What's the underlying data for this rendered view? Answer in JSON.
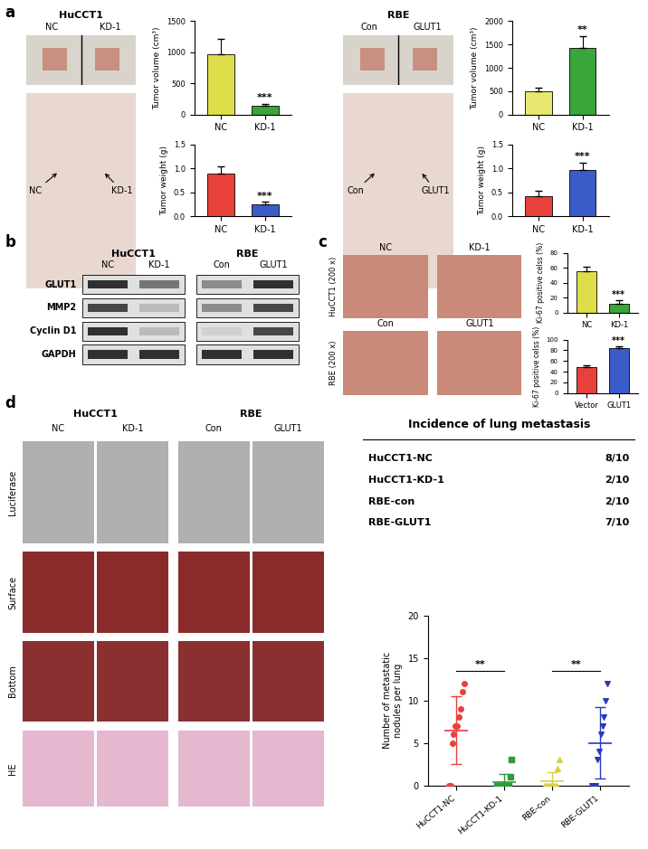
{
  "chart_data": [
    {
      "type": "bar",
      "panel": "a",
      "group": "HuCCT1",
      "categories": [
        "NC",
        "KD-1"
      ],
      "values": [
        970,
        140
      ],
      "errors": [
        250,
        30
      ],
      "colors": [
        "#dede4a",
        "#3aa53a"
      ],
      "y_label": "Tumor volume (cm³)",
      "ylim": [
        0,
        1500
      ],
      "yticks": [
        0,
        500,
        1000,
        1500
      ],
      "annotation": "***"
    },
    {
      "type": "bar",
      "panel": "a",
      "group": "HuCCT1",
      "categories": [
        "NC",
        "KD-1"
      ],
      "values": [
        0.9,
        0.25
      ],
      "errors": [
        0.15,
        0.05
      ],
      "colors": [
        "#e8403a",
        "#3a5bc8"
      ],
      "y_label": "Tumor weight (g)",
      "ylim": [
        0,
        1.5
      ],
      "yticks": [
        {
          "value": 0,
          "label": "0.0"
        },
        0.5,
        {
          "value": 1,
          "label": "1.0"
        },
        1.5
      ],
      "annotation": "***"
    },
    {
      "type": "bar",
      "panel": "a",
      "group": "RBE",
      "categories": [
        "NC",
        "KD-1"
      ],
      "values": [
        500,
        1430
      ],
      "errors": [
        70,
        250
      ],
      "colors": [
        "#e8e870",
        "#3aa53a"
      ],
      "y_label": "Tumor volume (cm³)",
      "ylim": [
        0,
        2000
      ],
      "yticks": [
        0,
        500,
        1000,
        1500,
        2000
      ],
      "annotation": "**"
    },
    {
      "type": "bar",
      "panel": "a",
      "group": "RBE",
      "categories": [
        "NC",
        "KD-1"
      ],
      "values": [
        0.42,
        0.97
      ],
      "errors": [
        0.12,
        0.15
      ],
      "colors": [
        "#e8403a",
        "#3a5bc8"
      ],
      "y_label": "Tumor weight (g)",
      "ylim": [
        0,
        1.5
      ],
      "yticks": [
        {
          "value": 0,
          "label": "0.0"
        },
        0.5,
        {
          "value": 1,
          "label": "1.0"
        },
        1.5
      ],
      "annotation": "***"
    },
    {
      "type": "bar",
      "panel": "c",
      "group": "HuCCT1",
      "categories": [
        "NC",
        "KD-1"
      ],
      "values": [
        55,
        12
      ],
      "errors": [
        6,
        4
      ],
      "colors": [
        "#dede4a",
        "#3aa53a"
      ],
      "y_label": "Ki-67 positive celss (%)",
      "ylim": [
        0,
        80
      ],
      "yticks": [
        0,
        20,
        40,
        60,
        80
      ],
      "annotation": "***"
    },
    {
      "type": "bar",
      "panel": "c",
      "group": "RBE",
      "categories": [
        "Vector",
        "GLUT1"
      ],
      "values": [
        49,
        84
      ],
      "errors": [
        3,
        4
      ],
      "colors": [
        "#e8403a",
        "#3a5bc8"
      ],
      "y_label": "Ki-67 positive celss (%)",
      "ylim": [
        0,
        100
      ],
      "yticks": [
        0,
        20,
        40,
        60,
        80,
        100
      ],
      "annotation": "***"
    },
    {
      "type": "scatter",
      "panel": "d",
      "categories": [
        "HuCCT1-NC",
        "HuCCT1-KD-1",
        "RBE-con",
        "RBE-GLUT1"
      ],
      "groups": [
        {
          "color": "#e8403a",
          "marker": "circle",
          "values": [
            0,
            0,
            5,
            6,
            7,
            7,
            8,
            9,
            11,
            12
          ],
          "mean": 6.5,
          "sd": 4.0
        },
        {
          "color": "#2e9a3a",
          "marker": "square",
          "values": [
            0,
            0,
            0,
            0,
            0,
            0,
            0,
            0,
            1,
            3
          ],
          "mean": 0.4,
          "sd": 0.9
        },
        {
          "color": "#d8d040",
          "marker": "triangle_up",
          "values": [
            0,
            0,
            0,
            0,
            0,
            0,
            0,
            0,
            2,
            3
          ],
          "mean": 0.5,
          "sd": 1.0
        },
        {
          "color": "#2a3ab8",
          "marker": "triangle_down",
          "values": [
            0,
            0,
            0,
            3,
            4,
            6,
            7,
            8,
            10,
            12
          ],
          "mean": 5.0,
          "sd": 4.2
        }
      ],
      "y_label": "Number of metastatic\nnodules per lung",
      "ylim": [
        0,
        20
      ],
      "yticks": [
        0,
        5,
        10,
        15,
        20
      ],
      "annotations": [
        {
          "text": "**",
          "between": [
            0,
            1
          ]
        },
        {
          "text": "**",
          "between": [
            2,
            3
          ]
        }
      ]
    }
  ],
  "panel_labels": [
    "a",
    "b",
    "c",
    "d"
  ],
  "panel_a_images": [
    {
      "group": "HuCCT1",
      "photo_labels": [
        "NC",
        "KD-1"
      ],
      "mouse_labels": [
        "NC",
        "KD-1"
      ]
    },
    {
      "group": "RBE",
      "photo_labels": [
        "Con",
        "GLUT1"
      ],
      "mouse_labels": [
        "Con",
        "GLUT1"
      ]
    }
  ],
  "western_blot": {
    "groups": [
      {
        "name": "HuCCT1",
        "lanes": [
          "NC",
          "KD-1"
        ]
      },
      {
        "name": "RBE",
        "lanes": [
          "Con",
          "GLUT1"
        ]
      }
    ],
    "proteins": [
      {
        "name": "GLUT1",
        "bands": [
          0.9,
          0.6,
          0.5,
          0.9
        ]
      },
      {
        "name": "MMP2",
        "bands": [
          0.8,
          0.3,
          0.5,
          0.8
        ]
      },
      {
        "name": "Cyclin D1",
        "bands": [
          0.9,
          0.3,
          0.2,
          0.8
        ]
      },
      {
        "name": "GAPDH",
        "bands": [
          0.9,
          0.9,
          0.9,
          0.9
        ]
      }
    ]
  },
  "panel_c_images": [
    {
      "row_label": "HuCCT1 (200 x)",
      "columns": [
        "NC",
        "KD-1"
      ]
    },
    {
      "row_label": "RBE (200 x)",
      "columns": [
        "Con",
        "GLUT1"
      ]
    }
  ],
  "panel_d_images": {
    "groups": [
      {
        "name": "HuCCT1",
        "columns": [
          "NC",
          "KD-1"
        ]
      },
      {
        "name": "RBE",
        "columns": [
          "Con",
          "GLUT1"
        ]
      }
    ],
    "rows": [
      "Luciferase",
      "Surface",
      "Bottom",
      "HE"
    ]
  },
  "incidence_table": {
    "title": "Incidence of lung metastasis",
    "rows": [
      [
        "HuCCT1-NC",
        "8/10"
      ],
      [
        "HuCCT1-KD-1",
        "2/10"
      ],
      [
        "RBE-con",
        "2/10"
      ],
      [
        "RBE-GLUT1",
        "7/10"
      ]
    ]
  }
}
